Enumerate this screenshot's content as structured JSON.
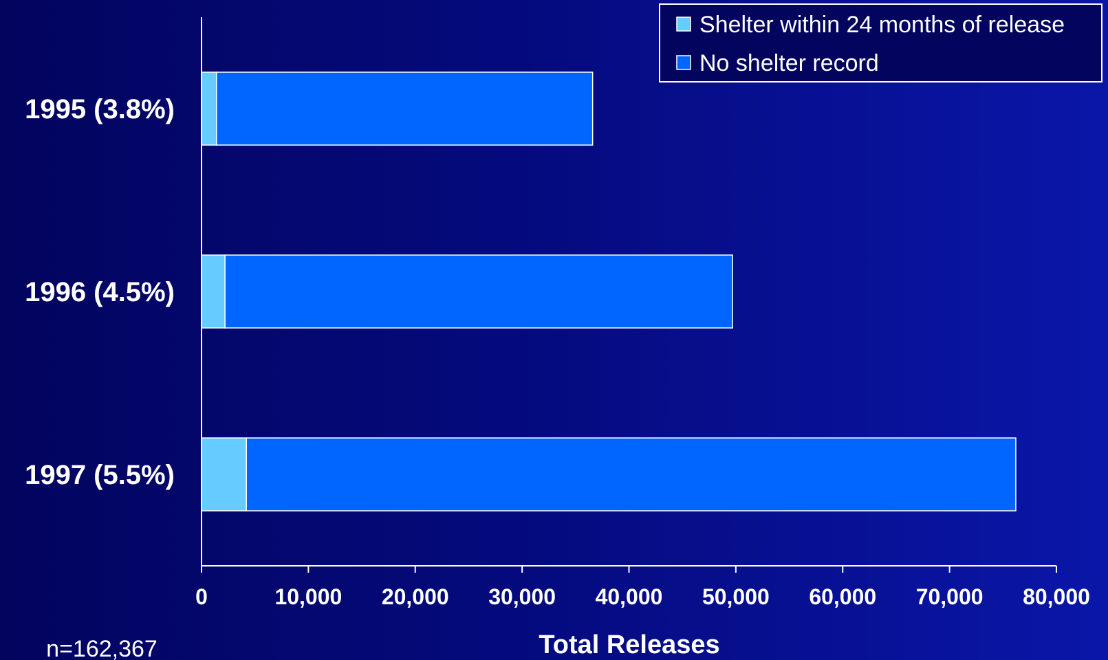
{
  "chart_data": {
    "type": "bar",
    "orientation": "horizontal",
    "stacked": true,
    "categories": [
      "1995 (3.8%)",
      "1996 (4.5%)",
      "1997 (5.5%)"
    ],
    "series": [
      {
        "name": "Shelter within 24 months of release",
        "color": "#66ccff",
        "values": [
          1400,
          2200,
          4200
        ]
      },
      {
        "name": "No shelter record",
        "color": "#0066ff",
        "values": [
          35200,
          47500,
          72000
        ]
      }
    ],
    "xlabel": "Total Releases",
    "xlim": [
      0,
      80000
    ],
    "xticks": [
      "0",
      "10,000",
      "20,000",
      "30,000",
      "40,000",
      "50,000",
      "60,000",
      "70,000",
      "80,000"
    ],
    "grid": false,
    "legend": "top-right"
  },
  "footnote": "n=162,367",
  "colors": {
    "background": "#040a7c",
    "axis": "#ffffff"
  }
}
